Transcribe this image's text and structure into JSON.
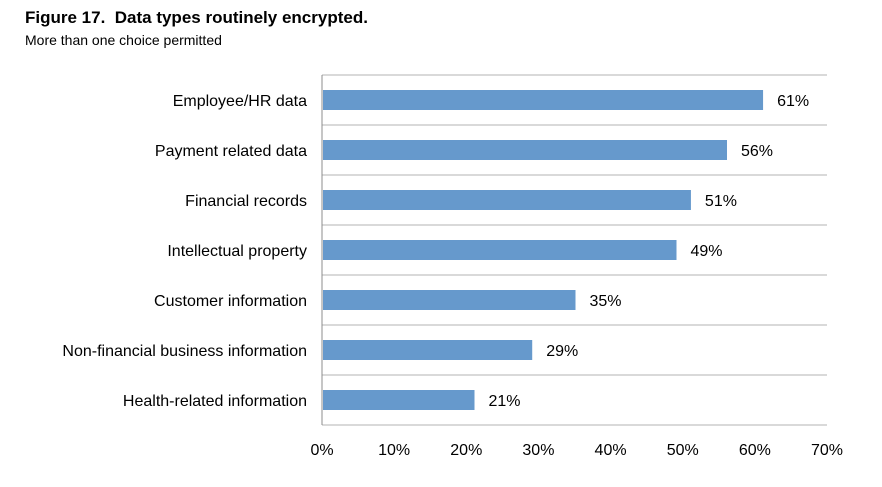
{
  "chart_data": {
    "type": "bar",
    "orientation": "horizontal",
    "title": "Figure 17.  Data types routinely encrypted.",
    "subtitle": "More than one choice permitted",
    "categories": [
      "Employee/HR data",
      "Payment related data",
      "Financial records",
      "Intellectual property",
      "Customer information",
      "Non-financial business information",
      "Health-related information"
    ],
    "values": [
      61,
      56,
      51,
      49,
      35,
      29,
      21
    ],
    "value_labels": [
      "61%",
      "56%",
      "51%",
      "49%",
      "35%",
      "29%",
      "21%"
    ],
    "xlim": [
      0,
      70
    ],
    "xticks": [
      "0%",
      "10%",
      "20%",
      "30%",
      "40%",
      "50%",
      "60%",
      "70%"
    ],
    "xlabel": "",
    "ylabel": "",
    "grid": "horizontal separators between categories",
    "legend": "none",
    "bar_color": "#6699CC"
  }
}
